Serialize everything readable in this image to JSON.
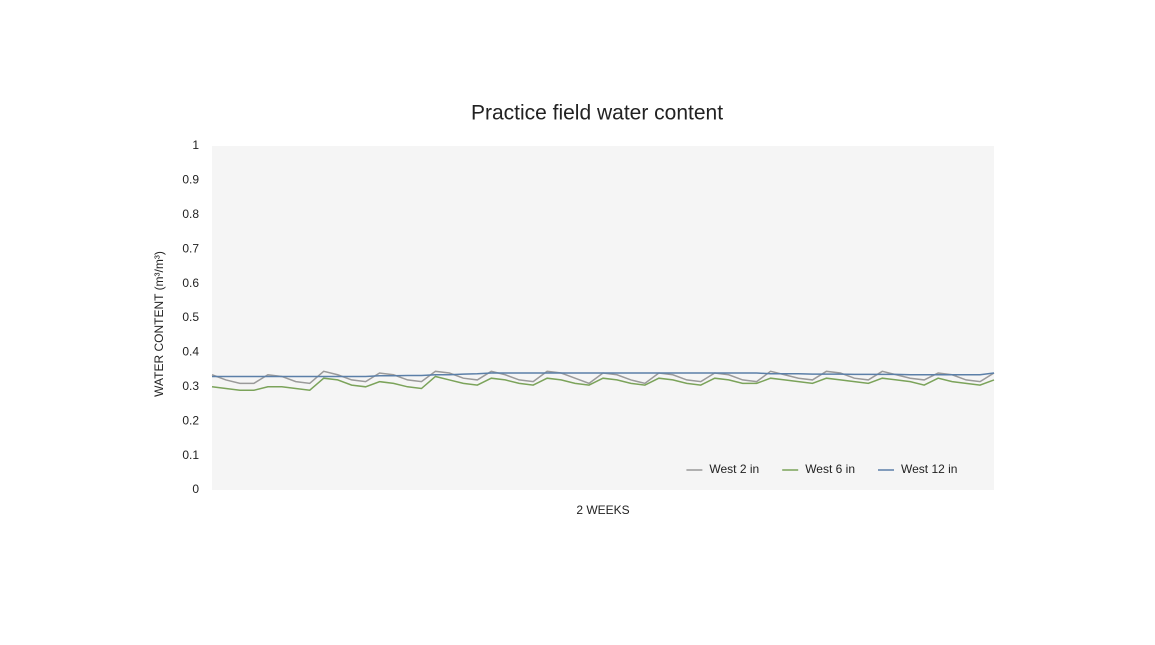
{
  "chart_data": {
    "type": "line",
    "title": "Practice field water content",
    "y_label": "WATER CONTENT (m³/m³)",
    "x_label": "2 WEEKS",
    "ylim": [
      0,
      1
    ],
    "yticks": [
      0,
      0.1,
      0.2,
      0.3,
      0.4,
      0.5,
      0.6,
      0.7,
      0.8,
      0.9,
      1
    ],
    "legend": "lower right",
    "series": [
      {
        "name": "West 2 in",
        "color": "#9a9a9a",
        "values": [
          0.335,
          0.32,
          0.31,
          0.31,
          0.335,
          0.33,
          0.315,
          0.31,
          0.345,
          0.335,
          0.32,
          0.315,
          0.34,
          0.335,
          0.32,
          0.315,
          0.345,
          0.34,
          0.325,
          0.32,
          0.345,
          0.335,
          0.32,
          0.315,
          0.345,
          0.34,
          0.325,
          0.31,
          0.34,
          0.335,
          0.32,
          0.31,
          0.34,
          0.335,
          0.32,
          0.315,
          0.34,
          0.335,
          0.32,
          0.315,
          0.345,
          0.335,
          0.325,
          0.32,
          0.345,
          0.34,
          0.325,
          0.32,
          0.345,
          0.335,
          0.325,
          0.32,
          0.34,
          0.335,
          0.32,
          0.315,
          0.34
        ]
      },
      {
        "name": "West 6 in",
        "color": "#7ba35a",
        "values": [
          0.3,
          0.295,
          0.29,
          0.29,
          0.3,
          0.3,
          0.295,
          0.29,
          0.325,
          0.32,
          0.305,
          0.3,
          0.315,
          0.31,
          0.3,
          0.295,
          0.33,
          0.32,
          0.31,
          0.305,
          0.325,
          0.32,
          0.31,
          0.305,
          0.325,
          0.32,
          0.31,
          0.305,
          0.325,
          0.32,
          0.31,
          0.305,
          0.325,
          0.32,
          0.31,
          0.305,
          0.325,
          0.32,
          0.31,
          0.31,
          0.325,
          0.32,
          0.315,
          0.31,
          0.325,
          0.32,
          0.315,
          0.31,
          0.325,
          0.32,
          0.315,
          0.305,
          0.325,
          0.315,
          0.31,
          0.305,
          0.32
        ]
      },
      {
        "name": "West 12 in",
        "color": "#5b7fa8",
        "values": [
          0.33,
          0.33,
          0.33,
          0.33,
          0.33,
          0.33,
          0.33,
          0.33,
          0.33,
          0.33,
          0.33,
          0.33,
          0.332,
          0.332,
          0.333,
          0.333,
          0.335,
          0.335,
          0.337,
          0.338,
          0.34,
          0.34,
          0.34,
          0.34,
          0.34,
          0.34,
          0.34,
          0.34,
          0.34,
          0.34,
          0.34,
          0.34,
          0.34,
          0.34,
          0.34,
          0.34,
          0.34,
          0.34,
          0.34,
          0.34,
          0.338,
          0.338,
          0.338,
          0.337,
          0.337,
          0.337,
          0.336,
          0.336,
          0.336,
          0.336,
          0.335,
          0.335,
          0.335,
          0.335,
          0.335,
          0.335,
          0.34
        ]
      }
    ]
  }
}
